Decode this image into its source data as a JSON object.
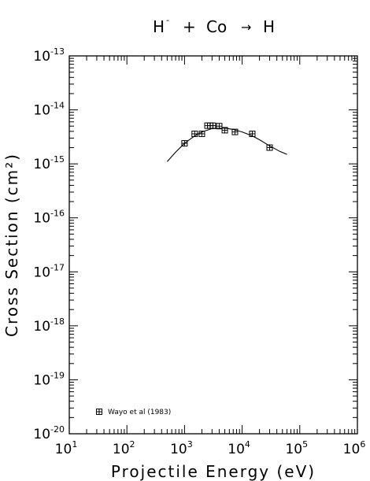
{
  "chart_data": {
    "type": "scatter",
    "title": {
      "projectile": "H",
      "projectile_charge": "-",
      "plus": "+",
      "target": "Co",
      "arrow": "→",
      "product": "H"
    },
    "xlabel": "Projectile Energy (eV)",
    "ylabel": "Cross Section (cm²)",
    "x_scale": "log",
    "y_scale": "log",
    "xlim": [
      10,
      1000000
    ],
    "ylim": [
      1e-20,
      1e-13
    ],
    "x_ticks": [
      {
        "base": "10",
        "exp": "1",
        "value": 10
      },
      {
        "base": "10",
        "exp": "2",
        "value": 100
      },
      {
        "base": "10",
        "exp": "3",
        "value": 1000
      },
      {
        "base": "10",
        "exp": "4",
        "value": 10000
      },
      {
        "base": "10",
        "exp": "5",
        "value": 100000
      },
      {
        "base": "10",
        "exp": "6",
        "value": 1000000
      }
    ],
    "y_ticks": [
      {
        "base": "10",
        "exp": "-20",
        "value": 1e-20
      },
      {
        "base": "10",
        "exp": "-19",
        "value": 1e-19
      },
      {
        "base": "10",
        "exp": "-18",
        "value": 1e-18
      },
      {
        "base": "10",
        "exp": "-17",
        "value": 1e-17
      },
      {
        "base": "10",
        "exp": "-16",
        "value": 1e-16
      },
      {
        "base": "10",
        "exp": "-15",
        "value": 1e-15
      },
      {
        "base": "10",
        "exp": "-14",
        "value": 1e-14
      },
      {
        "base": "10",
        "exp": "-13",
        "value": 1e-13
      }
    ],
    "legend_position": "bottom-left",
    "grid": false,
    "series": [
      {
        "name": "Wayo et al (1983)",
        "kind": "markers",
        "marker": "boxed-cross",
        "x": [
          1000,
          1500,
          2000,
          2500,
          2800,
          3100,
          4000,
          5000,
          7500,
          15000,
          30000
        ],
        "y": [
          2.4e-15,
          3.6e-15,
          3.6e-15,
          5.1e-15,
          5.1e-15,
          5.1e-15,
          5e-15,
          4.2e-15,
          3.9e-15,
          3.6e-15,
          2e-15
        ]
      },
      {
        "kind": "line",
        "x": [
          500,
          700,
          1000,
          1500,
          2000,
          3000,
          5000,
          7000,
          10000,
          15000,
          20000,
          30000,
          45000,
          60000
        ],
        "y": [
          1.1e-15,
          1.65e-15,
          2.4e-15,
          3.3e-15,
          3.9e-15,
          4.5e-15,
          4.6e-15,
          4.35e-15,
          3.9e-15,
          3.3e-15,
          2.8e-15,
          2.15e-15,
          1.7e-15,
          1.5e-15
        ]
      }
    ]
  }
}
